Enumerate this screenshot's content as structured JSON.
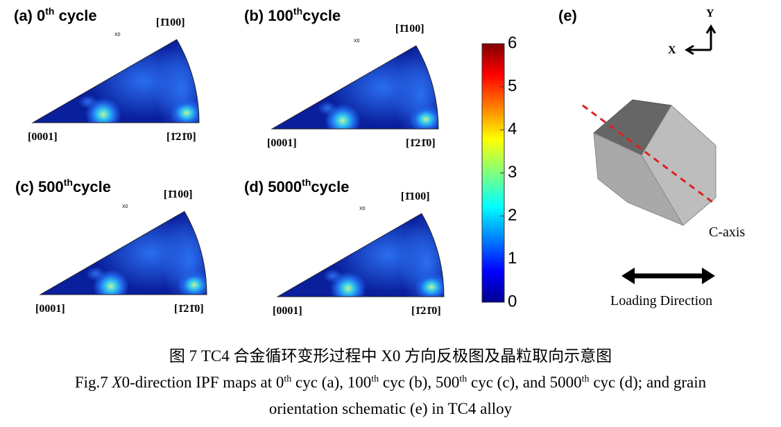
{
  "panels": [
    {
      "prefix": "(a) 0",
      "sup": "th",
      "suffix": " cycle"
    },
    {
      "prefix": "(b) 100",
      "sup": "th",
      "suffix": "cycle"
    },
    {
      "prefix": "(c) 500",
      "sup": "th",
      "suffix": "cycle"
    },
    {
      "prefix": "(d) 5000",
      "sup": "th",
      "suffix": "cycle"
    }
  ],
  "poles": {
    "x0": "X0",
    "top": "[1̄100]",
    "left": "[0001]",
    "right": "[1̄21̄0]"
  },
  "colorbar": {
    "range": [
      0,
      6
    ],
    "ticks": [
      0,
      1,
      2,
      3,
      4,
      5,
      6
    ]
  },
  "schematic": {
    "label": "(e)",
    "y_axis": "Y",
    "x_axis": "X",
    "c_axis": "C-axis",
    "loading": "Loading Direction"
  },
  "caption": {
    "chinese": "图 7 TC4 合金循环变形过程中 X0 方向反极图及晶粒取向示意图",
    "english": [
      "Fig.7 ",
      "X",
      "0-direction IPF maps at 0",
      "th",
      " cyc (a), 100",
      "th",
      " cyc (b), 500",
      "th",
      " cyc (c), and 5000",
      "th",
      " cyc (d); and grain",
      "orientation schematic (e) in TC4 alloy"
    ]
  }
}
